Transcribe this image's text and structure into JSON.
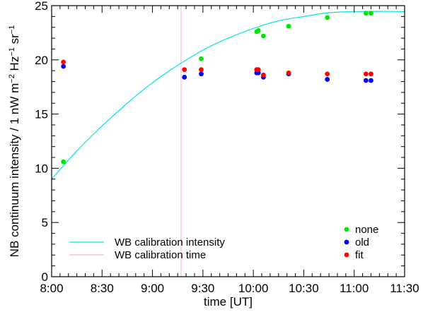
{
  "chart_data": {
    "type": "scatter",
    "xlabel": "time [UT]",
    "ylabel_parts": [
      "NB continuum intensity / 1 nW m",
      "−2",
      " Hz",
      "−1",
      " sr",
      "−1"
    ],
    "xlim": [
      "8:00",
      "11:30"
    ],
    "ylim": [
      0,
      25
    ],
    "x_ticks": [
      "8:00",
      "8:30",
      "9:00",
      "9:30",
      "10:00",
      "10:30",
      "11:00",
      "11:30"
    ],
    "y_ticks": [
      0,
      5,
      10,
      15,
      20,
      25
    ],
    "series": [
      {
        "name": "none",
        "color": "#00e600",
        "points": [
          [
            "8:07",
            10.6
          ],
          [
            "9:19",
            18.4
          ],
          [
            "9:29",
            20.1
          ],
          [
            "10:02",
            22.6
          ],
          [
            "10:03",
            22.7
          ],
          [
            "10:06",
            22.2
          ],
          [
            "10:21",
            23.1
          ],
          [
            "10:44",
            23.9
          ],
          [
            "11:07",
            24.3
          ],
          [
            "11:10",
            24.3
          ]
        ]
      },
      {
        "name": "old",
        "color": "#0000ff",
        "points": [
          [
            "8:07",
            19.4
          ],
          [
            "9:19",
            18.4
          ],
          [
            "9:29",
            18.7
          ],
          [
            "10:02",
            18.8
          ],
          [
            "10:03",
            18.8
          ],
          [
            "10:06",
            18.4
          ],
          [
            "10:21",
            18.7
          ],
          [
            "10:44",
            18.2
          ],
          [
            "11:07",
            18.1
          ],
          [
            "11:10",
            18.1
          ]
        ]
      },
      {
        "name": "fit",
        "color": "#ff0000",
        "points": [
          [
            "8:07",
            19.8
          ],
          [
            "9:19",
            19.1
          ],
          [
            "9:29",
            19.1
          ],
          [
            "10:02",
            19.1
          ],
          [
            "10:03",
            19.1
          ],
          [
            "10:06",
            18.6
          ],
          [
            "10:21",
            18.8
          ],
          [
            "10:44",
            18.7
          ],
          [
            "11:07",
            18.7
          ],
          [
            "11:10",
            18.7
          ]
        ]
      }
    ],
    "lines": [
      {
        "name": "WB calibration intensity",
        "color": "#00e5e5",
        "points": [
          [
            "8:00",
            9.0
          ],
          [
            "8:15",
            11.6
          ],
          [
            "8:30",
            13.9
          ],
          [
            "8:45",
            16.0
          ],
          [
            "9:00",
            17.9
          ],
          [
            "9:15",
            19.5
          ],
          [
            "9:30",
            20.9
          ],
          [
            "9:45",
            22.0
          ],
          [
            "10:00",
            22.9
          ],
          [
            "10:15",
            23.6
          ],
          [
            "10:30",
            24.0
          ],
          [
            "10:45",
            24.35
          ],
          [
            "11:00",
            24.45
          ],
          [
            "11:15",
            24.47
          ],
          [
            "11:30",
            24.45
          ]
        ]
      }
    ],
    "vertical_lines": [
      {
        "name": "WB calibration time",
        "color": "#ffb6c1",
        "x": "9:17"
      }
    ],
    "legend_lines_position": "bottom-left",
    "legend_points_position": "bottom-right",
    "grid": false
  }
}
